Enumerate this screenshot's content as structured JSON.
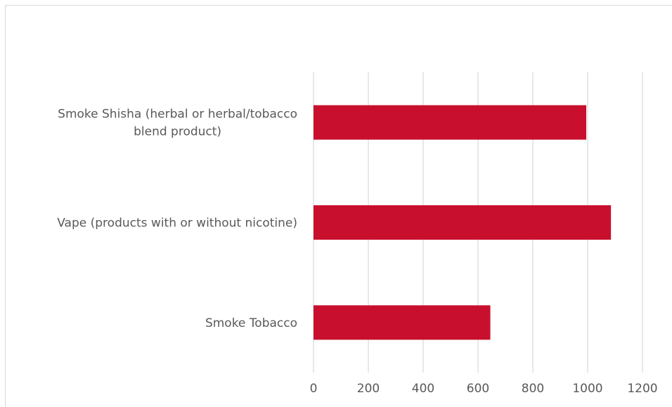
{
  "chart_data": {
    "type": "bar",
    "orientation": "horizontal",
    "title": "",
    "xlabel": "",
    "ylabel": "",
    "categories": [
      [
        "Smoke Shisha (herbal or herbal/tobacco",
        "blend product)"
      ],
      [
        "Vape (products with or without nicotine)"
      ],
      [
        "Smoke Tobacco"
      ]
    ],
    "values": [
      995,
      1085,
      645
    ],
    "xlim": [
      0,
      1200
    ],
    "xticks": [
      "0",
      "200",
      "400",
      "600",
      "800",
      "1000",
      "1200"
    ],
    "grid": true,
    "legend": "none",
    "colors": {
      "bar": "#c8102e",
      "grid": "#d9d9d9",
      "text": "#595959",
      "frame": "#d9d9d9"
    }
  }
}
